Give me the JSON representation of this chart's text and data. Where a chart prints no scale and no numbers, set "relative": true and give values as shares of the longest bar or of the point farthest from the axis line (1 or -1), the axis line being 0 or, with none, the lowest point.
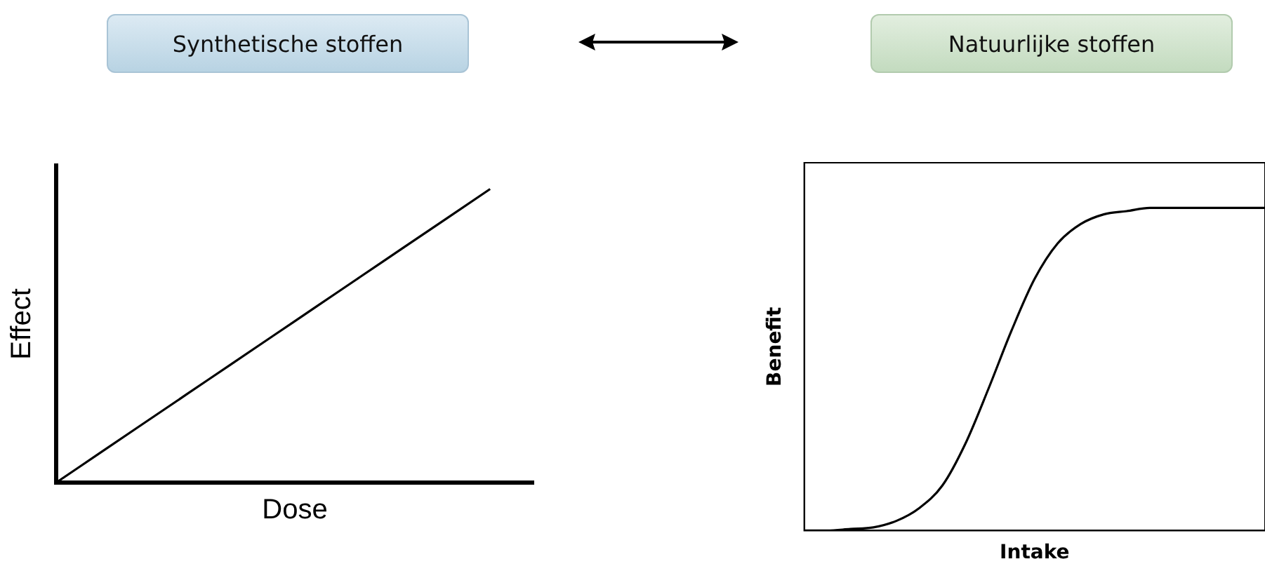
{
  "chart_data": [
    {
      "type": "line",
      "title": "Synthetische stoffen",
      "xlabel": "Dose",
      "ylabel": "Effect",
      "relative": true,
      "categories": [
        null,
        null,
        null,
        null,
        null,
        null,
        null,
        null,
        null,
        null,
        null,
        null
      ],
      "series": [
        {
          "color": "#000000",
          "values": [
            0,
            0.1,
            0.2,
            0.3,
            0.4,
            0.5,
            0.6,
            0.7,
            0.8,
            0.9,
            1,
            null
          ]
        }
      ],
      "grid": false,
      "legend": false,
      "tick_labels": false,
      "marker": "none",
      "line_style": "solid"
    },
    {
      "type": "line",
      "title": "Natuurlijke stoffen",
      "xlabel": "Intake",
      "ylabel": "Benefit",
      "relative": true,
      "categories": [
        null,
        null,
        null,
        null,
        null,
        null,
        null,
        null,
        null,
        null,
        null,
        null,
        null,
        null,
        null,
        null,
        null,
        null,
        null,
        null,
        null
      ],
      "series": [
        {
          "color": "#000000",
          "values": [
            0,
            0,
            0.005,
            0.01,
            0.03,
            0.07,
            0.14,
            0.27,
            0.44,
            0.62,
            0.78,
            0.89,
            0.95,
            0.98,
            0.99,
            1,
            1,
            1,
            1,
            1,
            1
          ]
        }
      ],
      "grid": false,
      "legend": false,
      "tick_labels": false,
      "marker": "none",
      "line_style": "solid"
    }
  ]
}
